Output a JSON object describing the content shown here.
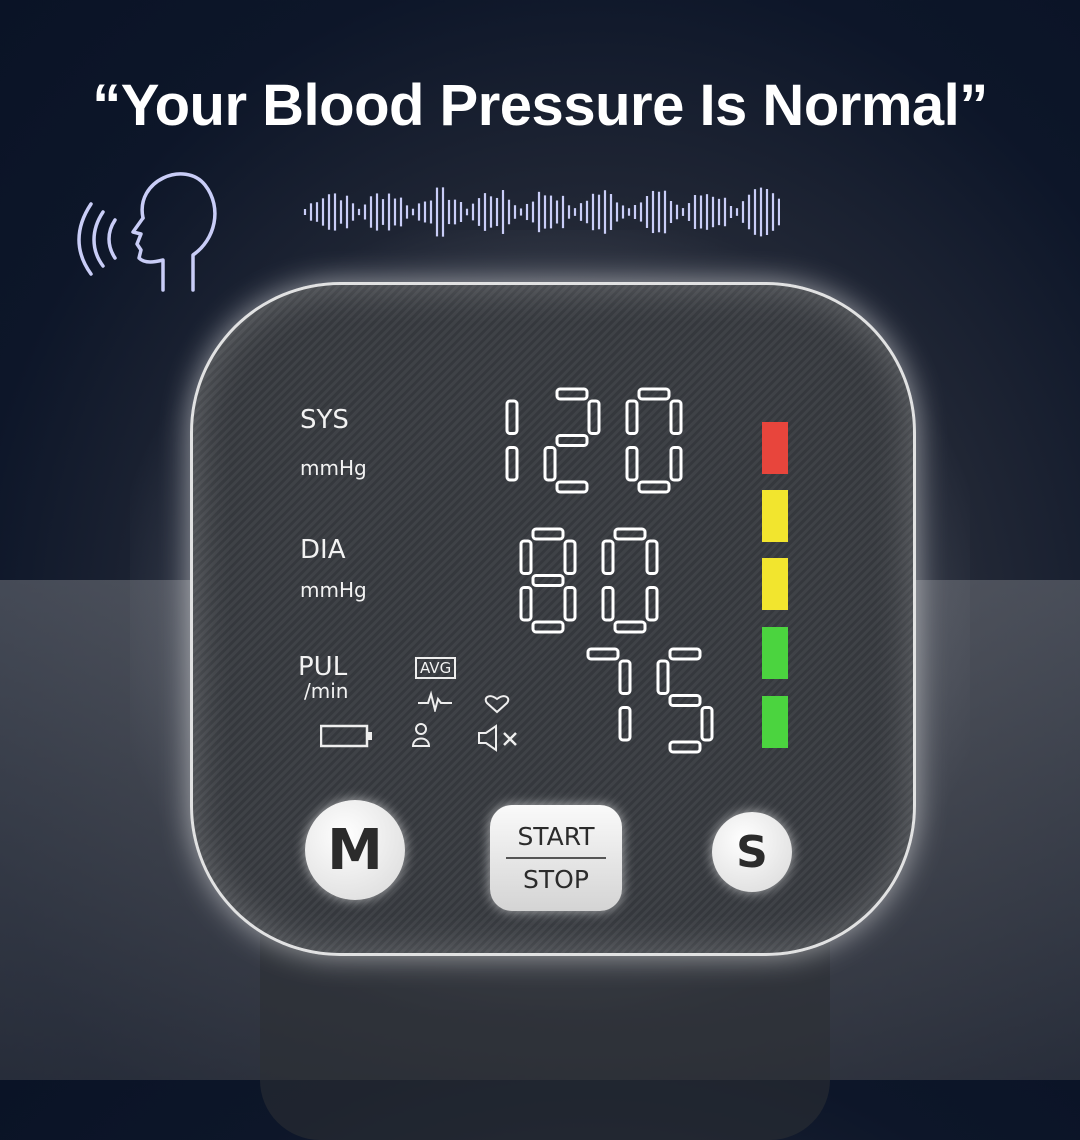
{
  "headline": "“Your Blood Pressure Is Normal”",
  "icons": {
    "voice": "speaking-head-icon",
    "waveform": "audio-waveform-icon"
  },
  "display": {
    "sys_label": "SYS",
    "sys_unit": "mmHg",
    "dia_label": "DIA",
    "dia_unit": "mmHg",
    "pul_label": "PUL",
    "pul_unit": "/min",
    "avg_label": "AVG",
    "readings": {
      "sys": "120",
      "dia": "80",
      "pul": "75"
    },
    "status_icons": [
      "pulse-wave-icon",
      "heart-icon",
      "battery-icon",
      "user-icon",
      "mute-icon"
    ],
    "level_bars": [
      "#e8453c",
      "#f2e52e",
      "#f2e52e",
      "#4bd43f",
      "#4bd43f"
    ]
  },
  "buttons": {
    "memory": "M",
    "start": "START",
    "stop": "STOP",
    "set": "S"
  },
  "colors": {
    "accent_voice": "#c9cdf7",
    "background": "#0c1830"
  }
}
